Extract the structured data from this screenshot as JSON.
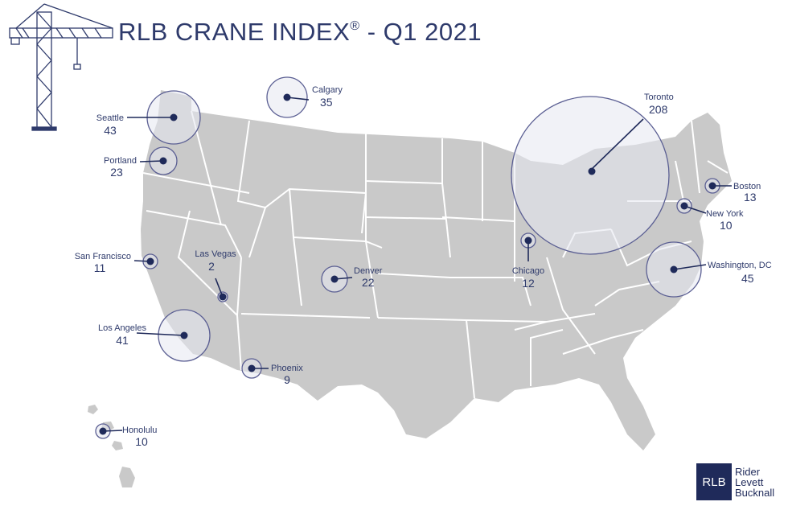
{
  "header": {
    "title": "RLB CRANE INDEX",
    "registered": "®",
    "subtitle": "- Q1 2021"
  },
  "logo": {
    "box_text": "RLB",
    "line1": "Rider",
    "line2": "Levett",
    "line3": "Bucknall"
  },
  "colors": {
    "land": "#c9c9c9",
    "state_border": "#ffffff",
    "marker": "#1f2a5a",
    "bubble_fill": "#e6e7f0",
    "bubble_stroke": "#5b5f93",
    "text": "#2e3a6b"
  },
  "cities": [
    {
      "name": "Seattle",
      "count": "43"
    },
    {
      "name": "Calgary",
      "count": "35"
    },
    {
      "name": "Portland",
      "count": "23"
    },
    {
      "name": "Toronto",
      "count": "208"
    },
    {
      "name": "Boston",
      "count": "13"
    },
    {
      "name": "New York",
      "count": "10"
    },
    {
      "name": "San Francisco",
      "count": "11"
    },
    {
      "name": "Las Vegas",
      "count": "2"
    },
    {
      "name": "Denver",
      "count": "22"
    },
    {
      "name": "Chicago",
      "count": "12"
    },
    {
      "name": "Washington, DC",
      "count": "45"
    },
    {
      "name": "Los Angeles",
      "count": "41"
    },
    {
      "name": "Phoenix",
      "count": "9"
    },
    {
      "name": "Honolulu",
      "count": "10"
    }
  ]
}
